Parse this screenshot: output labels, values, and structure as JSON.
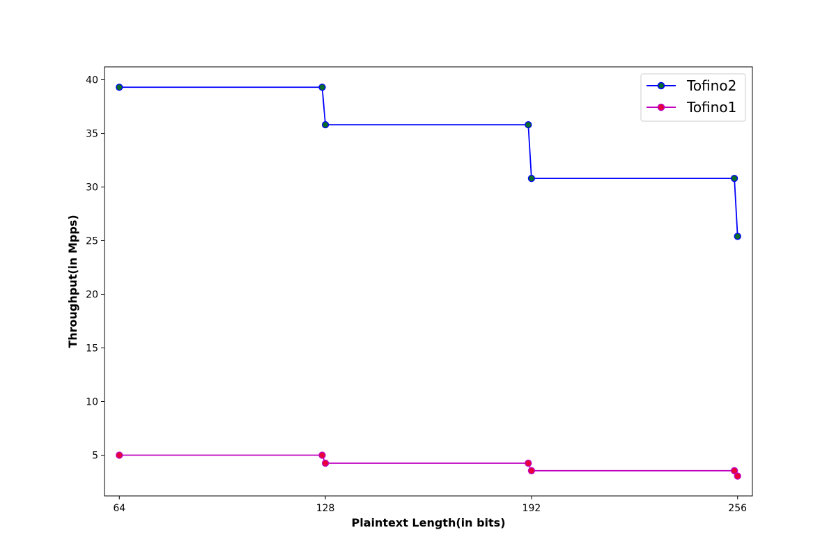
{
  "chart_data": {
    "type": "line",
    "xlabel": "Plaintext Length(in bits)",
    "ylabel": "Throughput(in Mpps)",
    "xlim": [
      59.4,
      260.6
    ],
    "ylim": [
      1.2,
      41.2
    ],
    "xticks": [
      64,
      128,
      192,
      256
    ],
    "yticks": [
      5,
      10,
      15,
      20,
      25,
      30,
      35,
      40
    ],
    "grid": false,
    "legend_position": "top-right",
    "series": [
      {
        "name": "Tofino2",
        "line_color": "#0000ff",
        "marker_fill": "#0b6b2a",
        "marker_edge": "#0000ff",
        "points": [
          {
            "x": 64,
            "y": 39.3
          },
          {
            "x": 127,
            "y": 39.3
          },
          {
            "x": 128,
            "y": 35.8
          },
          {
            "x": 191,
            "y": 35.8
          },
          {
            "x": 192,
            "y": 30.8
          },
          {
            "x": 255,
            "y": 30.8
          },
          {
            "x": 256,
            "y": 25.4
          }
        ]
      },
      {
        "name": "Tofino1",
        "line_color": "#c000c0",
        "marker_fill": "#e8003a",
        "marker_edge": "#c000c0",
        "points": [
          {
            "x": 64,
            "y": 5.0
          },
          {
            "x": 127,
            "y": 5.0
          },
          {
            "x": 128,
            "y": 4.25
          },
          {
            "x": 191,
            "y": 4.25
          },
          {
            "x": 192,
            "y": 3.55
          },
          {
            "x": 255,
            "y": 3.55
          },
          {
            "x": 256,
            "y": 3.05
          }
        ]
      }
    ]
  }
}
